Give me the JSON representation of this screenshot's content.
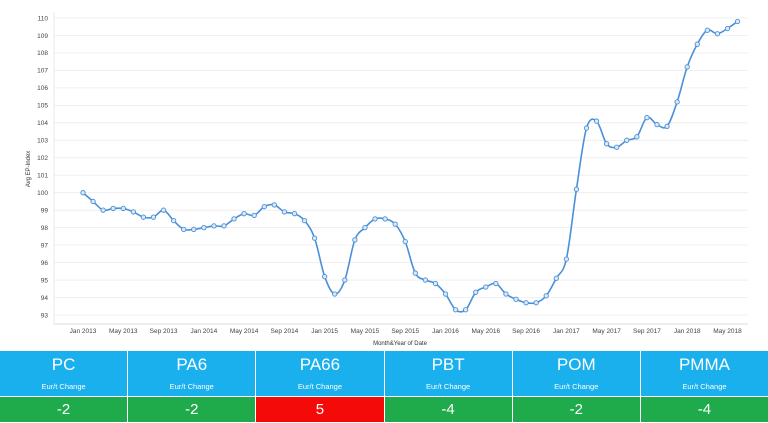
{
  "chart_data": {
    "type": "line",
    "xlabel": "Month&Year of Date",
    "ylabel": "Avg EP-Index",
    "ylim": [
      93,
      110
    ],
    "y_ticks": [
      93,
      94,
      95,
      96,
      97,
      98,
      99,
      100,
      101,
      102,
      103,
      104,
      105,
      106,
      107,
      108,
      109,
      110
    ],
    "x_tick_labels": [
      "Jan 2013",
      "May 2013",
      "Sep 2013",
      "Jan 2014",
      "May 2014",
      "Sep 2014",
      "Jan 2015",
      "May 2015",
      "Sep 2015",
      "Jan 2016",
      "May 2016",
      "Sep 2016",
      "Jan 2017",
      "May 2017",
      "Sep 2017",
      "Jan 2018",
      "May 2018"
    ],
    "x_tick_month_index": [
      0,
      4,
      8,
      12,
      16,
      20,
      24,
      28,
      32,
      36,
      40,
      44,
      48,
      52,
      56,
      60,
      64
    ],
    "line_color": "#4a90d9",
    "grid": true,
    "series": [
      {
        "values": [
          100.0,
          99.5,
          99.0,
          99.1,
          99.1,
          98.9,
          98.6,
          98.6,
          99.0,
          98.4,
          97.9,
          97.9,
          98.0,
          98.1,
          98.1,
          98.5,
          98.8,
          98.7,
          99.2,
          99.3,
          98.9,
          98.8,
          98.4,
          97.4,
          95.2,
          94.2,
          95.0,
          97.3,
          98.0,
          98.5,
          98.5,
          98.2,
          97.2,
          95.4,
          95.0,
          94.8,
          94.2,
          93.3,
          93.3,
          94.3,
          94.6,
          94.8,
          94.2,
          93.9,
          93.7,
          93.7,
          94.1,
          95.1,
          96.2,
          100.2,
          103.7,
          104.1,
          102.8,
          102.6,
          103.0,
          103.2,
          104.3,
          103.9,
          103.8,
          105.2,
          107.2,
          108.5,
          109.3,
          109.1,
          109.4,
          109.8
        ]
      }
    ]
  },
  "tiles": [
    {
      "name": "PC",
      "sub": "Eur/t Change",
      "value": "-2",
      "status": "down",
      "color": "#1faa4b"
    },
    {
      "name": "PA6",
      "sub": "Eur/t Change",
      "value": "-2",
      "status": "down",
      "color": "#1faa4b"
    },
    {
      "name": "PA66",
      "sub": "Eur/t Change",
      "value": "5",
      "status": "up",
      "color": "#f50a0a"
    },
    {
      "name": "PBT",
      "sub": "Eur/t Change",
      "value": "-4",
      "status": "down",
      "color": "#1faa4b"
    },
    {
      "name": "POM",
      "sub": "Eur/t Change",
      "value": "-2",
      "status": "down",
      "color": "#1faa4b"
    },
    {
      "name": "PMMA",
      "sub": "Eur/t Change",
      "value": "-4",
      "status": "down",
      "color": "#1faa4b"
    }
  ],
  "colors": {
    "header": "#1ab0ee",
    "down": "#1faa4b",
    "up": "#f50a0a"
  }
}
